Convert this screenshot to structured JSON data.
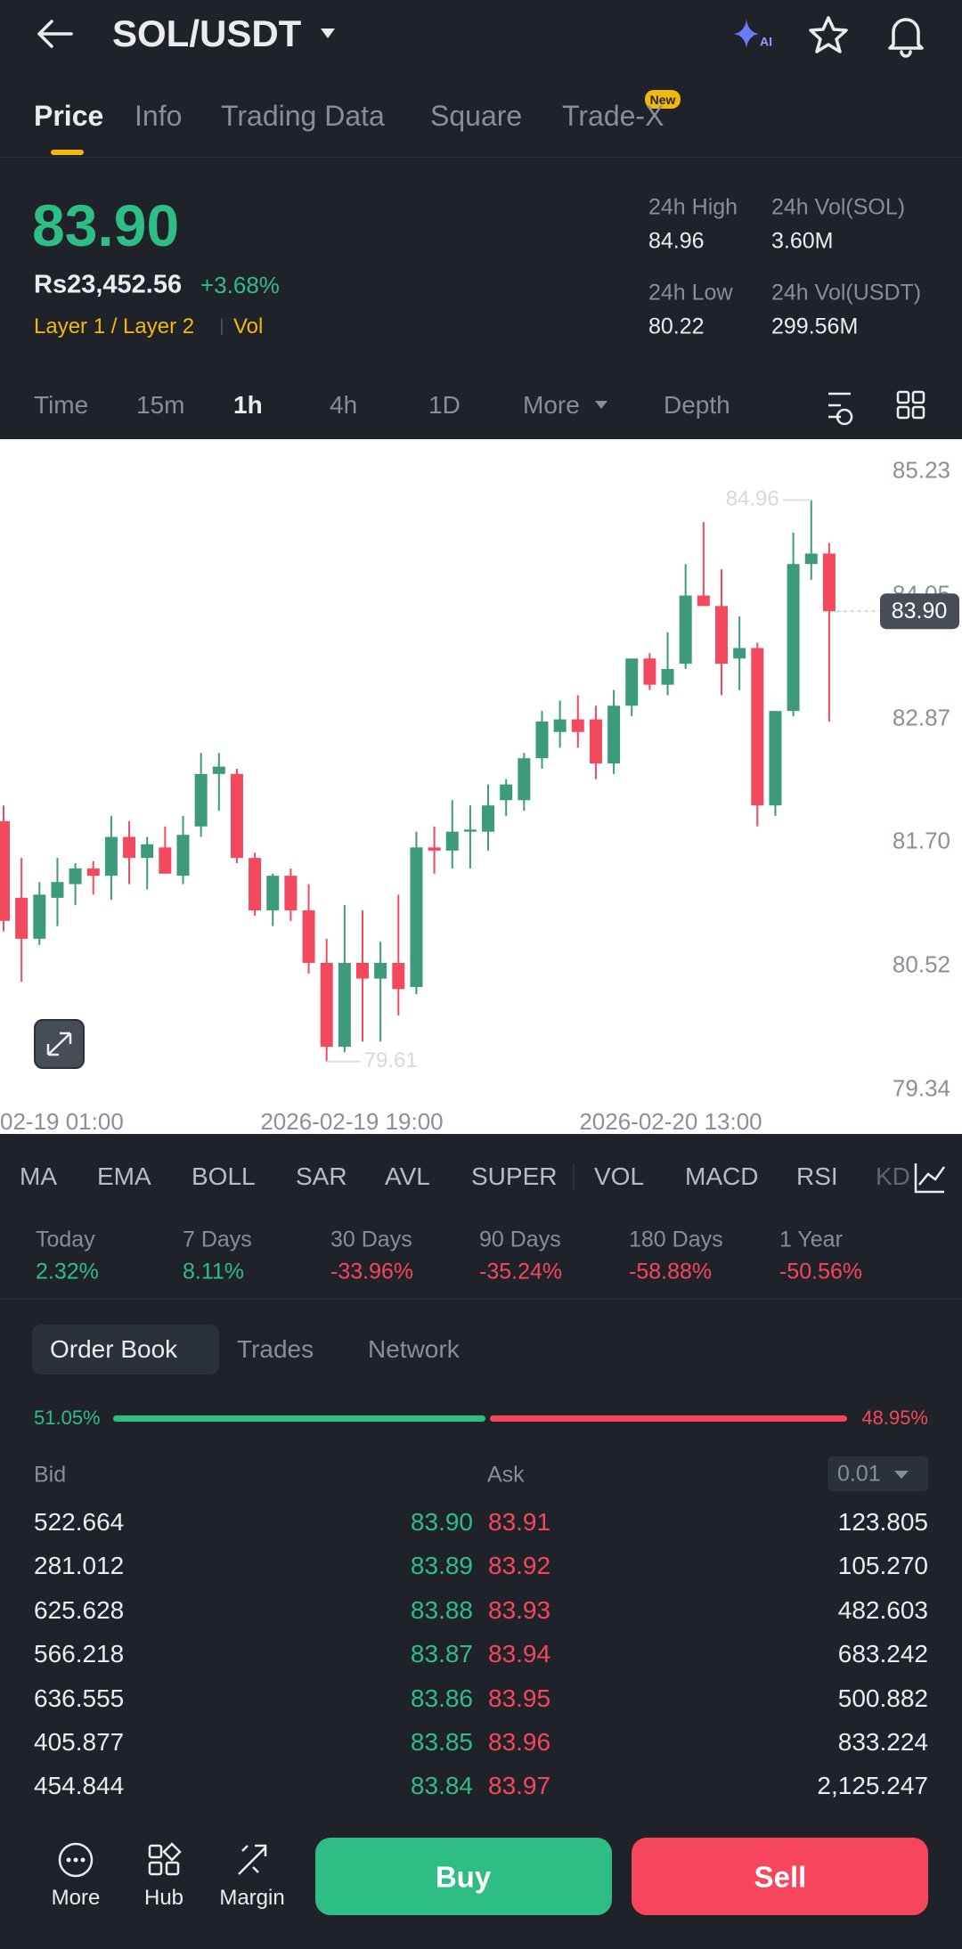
{
  "header": {
    "title": "SOL/USDT"
  },
  "tabs": [
    "Price",
    "Info",
    "Trading Data",
    "Square",
    "Trade-X"
  ],
  "new_badge": "New",
  "price": {
    "last": "83.90",
    "local": "Rs23,452.56",
    "change": "+3.68%",
    "tags": [
      "Layer 1 / Layer 2",
      "Vol"
    ]
  },
  "stats": [
    {
      "label": "24h High",
      "value": "84.96"
    },
    {
      "label": "24h Vol(SOL)",
      "value": "3.60M"
    },
    {
      "label": "24h Low",
      "value": "80.22"
    },
    {
      "label": "24h Vol(USDT)",
      "value": "299.56M"
    }
  ],
  "intervals": [
    "Time",
    "15m",
    "1h",
    "4h",
    "1D",
    "More",
    "Depth"
  ],
  "chart_data": {
    "type": "candlestick",
    "up_color": "#3d9a7c",
    "down_color": "#f2495f",
    "open": [
      81.9,
      81.17,
      80.78,
      81.17,
      81.3,
      81.45,
      81.38,
      81.75,
      81.55,
      81.65,
      81.38,
      81.85,
      82.35,
      82.35,
      81.55,
      81.05,
      81.38,
      81.05,
      80.55,
      79.75,
      80.55,
      80.4,
      80.55,
      80.32,
      81.65,
      81.62,
      81.8,
      81.8,
      82.1,
      82.1,
      82.5,
      82.75,
      82.87,
      82.87,
      82.45,
      83.0,
      83.45,
      83.2,
      83.4,
      84.05,
      83.95,
      83.45,
      83.55,
      82.05,
      82.95,
      84.35,
      84.45
    ],
    "high": [
      82.05,
      81.55,
      81.32,
      81.55,
      81.5,
      81.52,
      81.95,
      81.9,
      81.75,
      81.85,
      81.95,
      82.55,
      82.55,
      82.4,
      81.6,
      81.4,
      81.45,
      81.3,
      80.78,
      81.1,
      81.05,
      80.75,
      81.2,
      81.8,
      81.85,
      82.1,
      82.05,
      82.25,
      82.3,
      82.55,
      82.95,
      83.05,
      83.1,
      83.0,
      83.15,
      83.45,
      83.5,
      83.7,
      84.35,
      84.75,
      84.3,
      83.85,
      83.6,
      82.95,
      84.65,
      84.96,
      84.55
    ],
    "low": [
      80.85,
      80.37,
      80.72,
      80.9,
      81.1,
      81.2,
      81.15,
      81.3,
      81.25,
      81.4,
      81.3,
      81.75,
      82.0,
      81.5,
      81.0,
      80.9,
      80.95,
      80.45,
      79.61,
      79.7,
      79.8,
      79.8,
      80.05,
      80.25,
      81.4,
      81.45,
      81.45,
      81.62,
      81.95,
      82.0,
      82.4,
      82.6,
      82.6,
      82.3,
      82.35,
      82.9,
      83.15,
      83.1,
      83.35,
      83.95,
      83.1,
      83.15,
      81.85,
      81.95,
      82.9,
      84.2,
      82.85
    ],
    "close": [
      80.95,
      80.78,
      81.2,
      81.32,
      81.45,
      81.38,
      81.75,
      81.55,
      81.68,
      81.4,
      81.77,
      82.35,
      82.42,
      81.55,
      81.05,
      81.38,
      81.05,
      80.55,
      79.75,
      80.55,
      80.4,
      80.55,
      80.3,
      81.65,
      81.62,
      81.8,
      81.82,
      82.05,
      82.25,
      82.5,
      82.85,
      82.87,
      82.75,
      82.45,
      83.0,
      83.45,
      83.2,
      83.35,
      84.05,
      83.95,
      83.4,
      83.55,
      82.05,
      82.95,
      84.35,
      84.45,
      83.9
    ],
    "ylim": [
      79.2,
      85.54
    ],
    "yticks": [
      85.23,
      84.05,
      82.87,
      {
        "value": 81.7,
        "label": "81.70"
      },
      80.52,
      79.34
    ],
    "x_labels": [
      "02-19 01:00",
      "2026-02-19 19:00",
      "2026-02-20 13:00"
    ],
    "high_label": 84.96,
    "low_label": 79.61,
    "last_price": {
      "value": 83.9,
      "label": "83.90"
    }
  },
  "indicators": [
    "MA",
    "EMA",
    "BOLL",
    "SAR",
    "AVL",
    "SUPER",
    "VOL",
    "MACD",
    "RSI",
    "KD"
  ],
  "performance": [
    {
      "label": "Today",
      "value": "2.32%"
    },
    {
      "label": "7 Days",
      "value": "8.11%"
    },
    {
      "label": "30 Days",
      "value": "-33.96%"
    },
    {
      "label": "90 Days",
      "value": "-35.24%"
    },
    {
      "label": "180 Days",
      "value": "-58.88%"
    },
    {
      "label": "1 Year",
      "value": "-50.56%"
    }
  ],
  "order_book": {
    "tabs": [
      "Order Book",
      "Trades",
      "Network"
    ],
    "bid_ratio": "51.05%",
    "ask_ratio": "48.95%",
    "bid_header": "Bid",
    "ask_header": "Ask",
    "precision": "0.01",
    "rows": [
      [
        "522.664",
        "83.90",
        "83.91",
        "123.805"
      ],
      [
        "281.012",
        "83.89",
        "83.92",
        "105.270"
      ],
      [
        "625.628",
        "83.88",
        "83.93",
        "482.603"
      ],
      [
        "566.218",
        "83.87",
        "83.94",
        "683.242"
      ],
      [
        "636.555",
        "83.86",
        "83.95",
        "500.882"
      ],
      [
        "405.877",
        "83.85",
        "83.96",
        "833.224"
      ],
      [
        "454.844",
        "83.84",
        "83.97",
        "2,125.247"
      ]
    ]
  },
  "actions": {
    "nav": [
      "More",
      "Hub",
      "Margin"
    ],
    "buy": "Buy",
    "sell": "Sell"
  }
}
